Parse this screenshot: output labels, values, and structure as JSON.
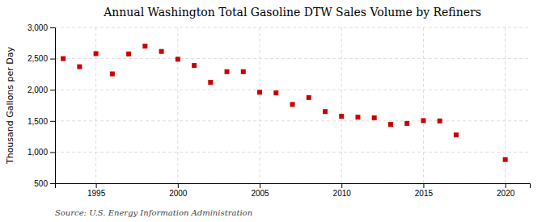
{
  "chart_data": {
    "type": "scatter",
    "title": "Annual Washington Total Gasoline DTW Sales Volume by Refiners",
    "ylabel": "Thousand Gallons per Day",
    "source": "Source: U.S. Energy Information Administration",
    "x": [
      1993,
      1994,
      1995,
      1996,
      1997,
      1998,
      1999,
      2000,
      2001,
      2002,
      2003,
      2004,
      2005,
      2006,
      2007,
      2008,
      2009,
      2010,
      2011,
      2012,
      2013,
      2014,
      2015,
      2016,
      2017,
      2018,
      2019,
      2020
    ],
    "values": [
      2500,
      2370,
      2580,
      2255,
      2575,
      2700,
      2615,
      2490,
      2390,
      2120,
      2290,
      2290,
      1960,
      1950,
      1765,
      1875,
      1650,
      1575,
      1560,
      1550,
      1445,
      1460,
      1505,
      1500,
      1275,
      null,
      null,
      880
    ],
    "color": "#cc0000",
    "marker": "square",
    "xlim": [
      1992.5,
      2021.5
    ],
    "xticks": [
      1995,
      2000,
      2005,
      2010,
      2015,
      2020
    ],
    "ylim": [
      500,
      3000
    ],
    "yticks": [
      500,
      {
        "value": 1000,
        "label": "1,000"
      },
      {
        "value": 1500,
        "label": "1,500"
      },
      {
        "value": 2000,
        "label": "2,000"
      },
      {
        "value": 2500,
        "label": "2,500"
      },
      {
        "value": 3000,
        "label": "3,000"
      }
    ],
    "grid": true
  }
}
